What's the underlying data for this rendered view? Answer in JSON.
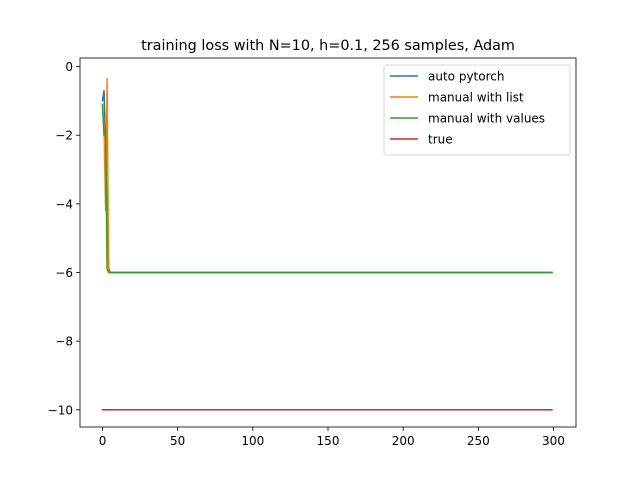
{
  "chart_data": {
    "type": "line",
    "title": "training loss with N=10, h=0.1, 256 samples, Adam",
    "xlabel": "",
    "ylabel": "",
    "xlim": [
      -15,
      315
    ],
    "ylim": [
      -10.5,
      0.25
    ],
    "xticks": [
      0,
      50,
      100,
      150,
      200,
      250,
      300
    ],
    "yticks": [
      0,
      -2,
      -4,
      -6,
      -8,
      -10
    ],
    "ytick_labels": [
      "0",
      "−2",
      "−4",
      "−6",
      "−8",
      "−10"
    ],
    "grid": false,
    "legend_position": "upper right",
    "series": [
      {
        "name": "auto pytorch",
        "color": "#1f77b4",
        "x": [
          0,
          1,
          2,
          3,
          4,
          5,
          299
        ],
        "y": [
          -1.0,
          -0.7,
          -2.2,
          -4.0,
          -5.85,
          -6.0,
          -6.0
        ]
      },
      {
        "name": "manual with list",
        "color": "#ff7f0e",
        "x": [
          0,
          1,
          2,
          3,
          4,
          5,
          299
        ],
        "y": [
          -1.2,
          -1.7,
          -4.2,
          -0.35,
          -6.0,
          -6.0,
          -6.0
        ]
      },
      {
        "name": "manual with values",
        "color": "#2ca02c",
        "x": [
          0,
          1,
          2,
          3,
          4,
          5,
          299
        ],
        "y": [
          -1.1,
          -2.0,
          -1.8,
          -5.9,
          -6.0,
          -6.0,
          -6.0
        ]
      },
      {
        "name": "true",
        "color": "#d62728",
        "x": [
          0,
          299
        ],
        "y": [
          -10.0,
          -10.0
        ]
      }
    ]
  }
}
